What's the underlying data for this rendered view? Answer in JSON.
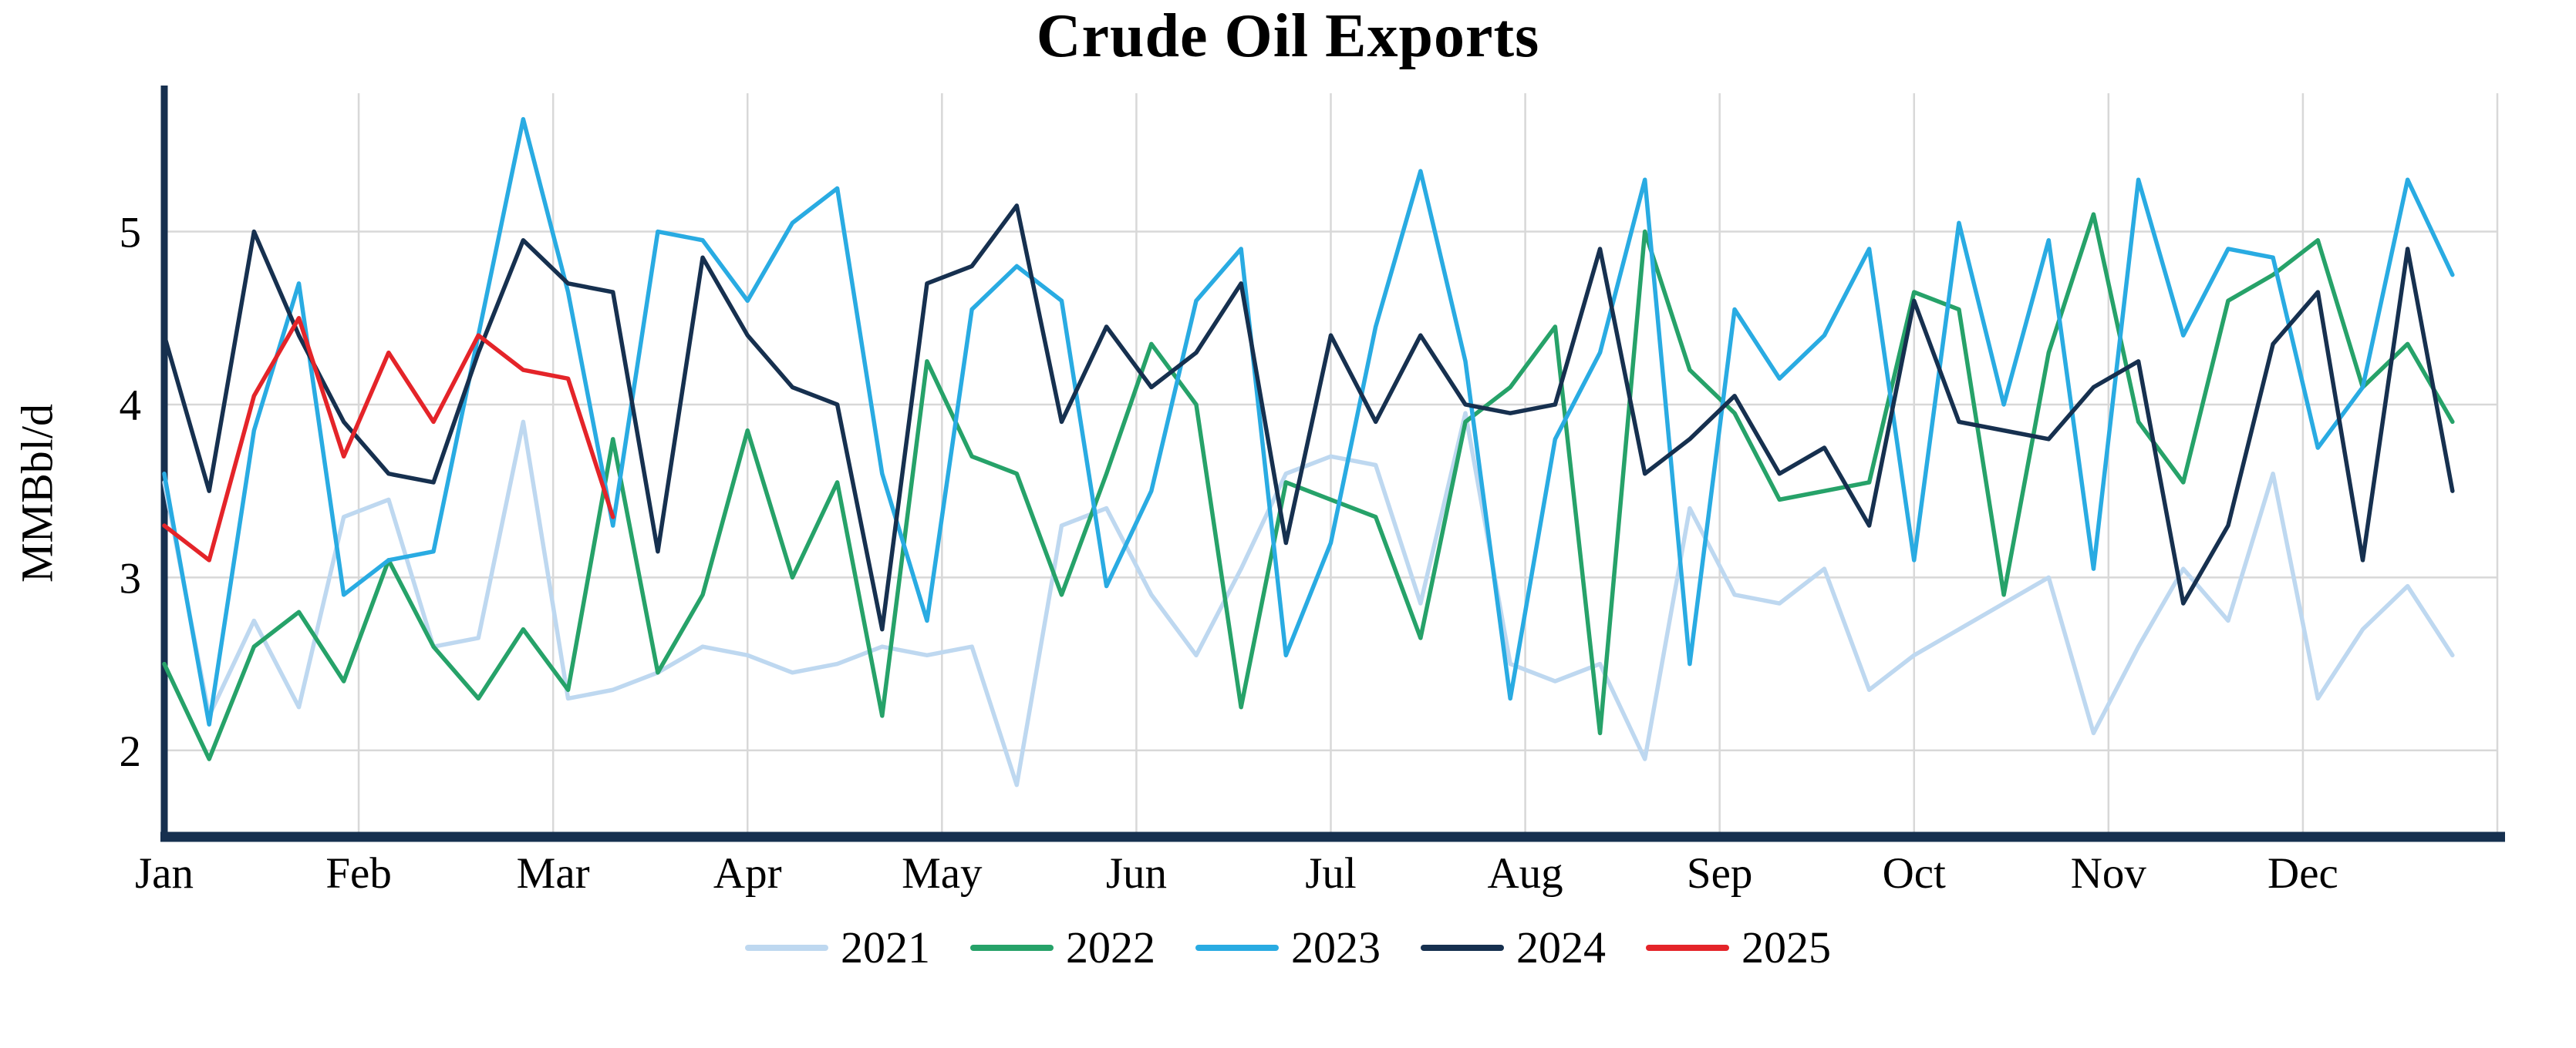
{
  "page": {
    "background": "#ffffff"
  },
  "chart_data": {
    "type": "line",
    "title": "Crude Oil Exports",
    "xlabel": "",
    "ylabel": "MMBbl/d",
    "x_unit": "week of year",
    "months": [
      "Jan",
      "Feb",
      "Mar",
      "Apr",
      "May",
      "Jun",
      "Jul",
      "Aug",
      "Sep",
      "Oct",
      "Nov",
      "Dec"
    ],
    "weeks_per_year": 52,
    "ylim": [
      1.5,
      5.8
    ],
    "yticks": [
      2,
      3,
      4,
      5
    ],
    "grid": true,
    "grid_color": "#d8d8d8",
    "axis_color": "#16304f",
    "legend_position": "bottom-center",
    "series": [
      {
        "name": "2021",
        "color": "#bed8f0",
        "values": [
          3.55,
          2.2,
          2.75,
          2.25,
          3.35,
          3.45,
          2.6,
          2.65,
          3.9,
          2.3,
          2.35,
          2.45,
          2.6,
          2.55,
          2.45,
          2.5,
          2.6,
          2.55,
          2.6,
          1.8,
          3.3,
          3.4,
          2.9,
          2.55,
          3.05,
          3.6,
          3.7,
          3.65,
          2.85,
          3.95,
          2.5,
          2.4,
          2.5,
          1.95,
          3.4,
          2.9,
          2.85,
          3.05,
          2.35,
          2.55,
          2.7,
          2.85,
          3.0,
          2.1,
          2.6,
          3.05,
          2.75,
          3.6,
          2.3,
          2.7,
          2.95,
          2.55
        ]
      },
      {
        "name": "2022",
        "color": "#26a269",
        "values": [
          2.5,
          1.95,
          2.6,
          2.8,
          2.4,
          3.1,
          2.6,
          2.3,
          2.7,
          2.35,
          3.8,
          2.45,
          2.9,
          3.85,
          3.0,
          3.55,
          2.2,
          4.25,
          3.7,
          3.6,
          2.9,
          3.6,
          4.35,
          4.0,
          2.25,
          3.55,
          3.45,
          3.35,
          2.65,
          3.9,
          4.1,
          4.45,
          2.1,
          5.0,
          4.2,
          3.95,
          3.45,
          3.5,
          3.55,
          4.65,
          4.55,
          2.9,
          4.3,
          5.1,
          3.9,
          3.55,
          4.6,
          4.75,
          4.95,
          4.1,
          4.35,
          3.9
        ]
      },
      {
        "name": "2023",
        "color": "#29abe2",
        "values": [
          3.6,
          2.15,
          3.85,
          4.7,
          2.9,
          3.1,
          3.15,
          4.4,
          5.65,
          4.65,
          3.3,
          5.0,
          4.95,
          4.6,
          5.05,
          5.25,
          3.6,
          2.75,
          4.55,
          4.8,
          4.6,
          2.95,
          3.5,
          4.6,
          4.9,
          2.55,
          3.2,
          4.45,
          5.35,
          4.25,
          2.3,
          3.8,
          4.3,
          5.3,
          2.5,
          4.55,
          4.15,
          4.4,
          4.9,
          3.1,
          5.05,
          4.0,
          4.95,
          3.05,
          5.3,
          4.4,
          4.9,
          4.85,
          3.75,
          4.1,
          5.3,
          4.75
        ]
      },
      {
        "name": "2024",
        "color": "#16304f",
        "values": [
          4.4,
          3.5,
          5.0,
          4.4,
          3.9,
          3.6,
          3.55,
          4.3,
          4.95,
          4.7,
          4.65,
          3.15,
          4.85,
          4.4,
          4.1,
          4.0,
          2.7,
          4.7,
          4.8,
          5.15,
          3.9,
          4.45,
          4.1,
          4.3,
          4.7,
          3.2,
          4.4,
          3.9,
          4.4,
          4.0,
          3.95,
          4.0,
          4.9,
          3.6,
          3.8,
          4.05,
          3.6,
          3.75,
          3.3,
          4.6,
          3.9,
          3.85,
          3.8,
          4.1,
          4.25,
          2.85,
          3.3,
          4.35,
          4.65,
          3.1,
          4.9,
          3.5
        ]
      },
      {
        "name": "2025",
        "color": "#e42429",
        "values": [
          3.3,
          3.1,
          4.05,
          4.5,
          3.7,
          4.3,
          3.9,
          4.4,
          4.2,
          4.15,
          3.35
        ]
      }
    ]
  }
}
